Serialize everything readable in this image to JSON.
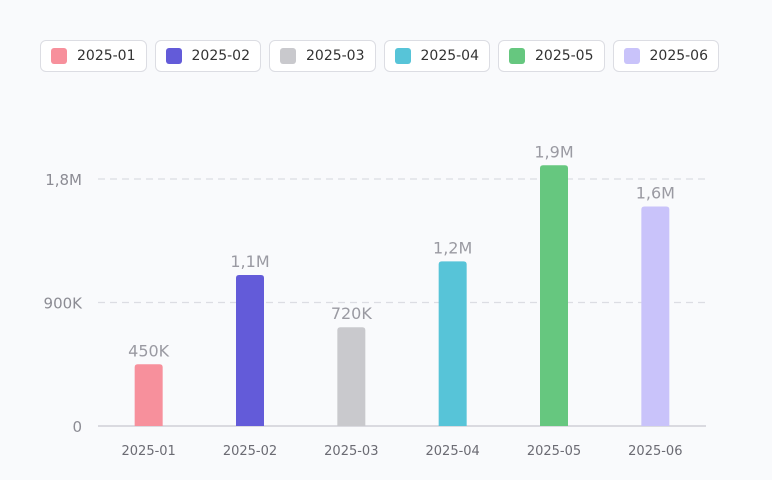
{
  "chart_data": {
    "type": "bar",
    "categories": [
      "2025-01",
      "2025-02",
      "2025-03",
      "2025-04",
      "2025-05",
      "2025-06"
    ],
    "values": [
      450000,
      1100000,
      720000,
      1200000,
      1900000,
      1600000
    ],
    "data_labels": [
      "450K",
      "1,1M",
      "720K",
      "1,2M",
      "1,9M",
      "1,6M"
    ],
    "colors": [
      "#f7909c",
      "#635bd9",
      "#c9c9cd",
      "#57c4d8",
      "#66c77f",
      "#c9c3fa"
    ],
    "y_ticks": [
      0,
      900000,
      1800000
    ],
    "y_tick_labels": [
      "0",
      "900K",
      "1,8M"
    ],
    "ylim": [
      0,
      1800000
    ],
    "grid": true,
    "legend_position": "top-left",
    "title": "",
    "xlabel": "",
    "ylabel": ""
  },
  "legend": {
    "items": [
      {
        "label": "2025-01",
        "color": "#f7909c"
      },
      {
        "label": "2025-02",
        "color": "#635bd9"
      },
      {
        "label": "2025-03",
        "color": "#c9c9cd"
      },
      {
        "label": "2025-04",
        "color": "#57c4d8"
      },
      {
        "label": "2025-05",
        "color": "#66c77f"
      },
      {
        "label": "2025-06",
        "color": "#c9c3fa"
      }
    ]
  }
}
